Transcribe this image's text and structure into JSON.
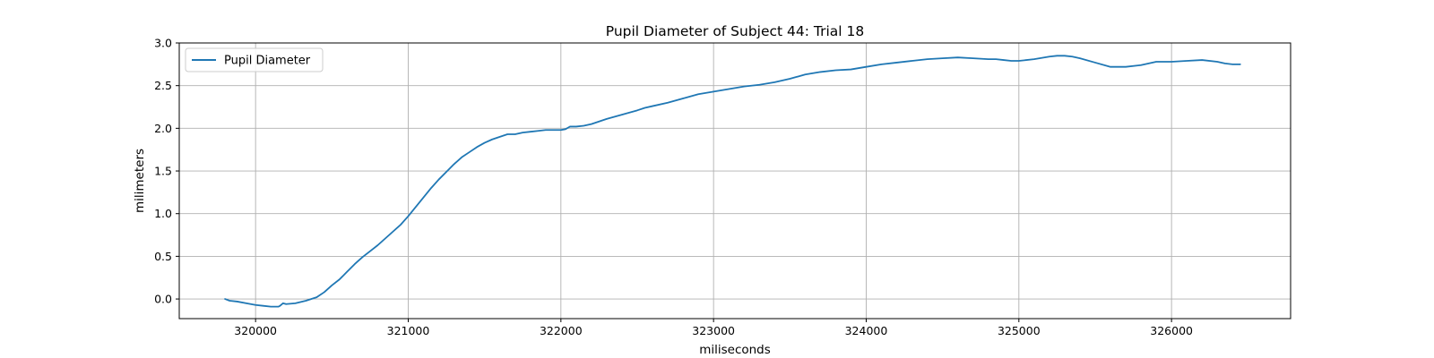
{
  "chart_data": {
    "type": "line",
    "title": "Pupil Diameter of Subject 44: Trial 18",
    "xlabel": "miliseconds",
    "ylabel": "milimeters",
    "xlim": [
      319500,
      326780
    ],
    "ylim": [
      -0.23,
      3.0
    ],
    "x_ticks": [
      320000,
      321000,
      322000,
      323000,
      324000,
      325000,
      326000
    ],
    "y_ticks": [
      0.0,
      0.5,
      1.0,
      1.5,
      2.0,
      2.5,
      3.0
    ],
    "grid": true,
    "legend_position": "top-left",
    "series": [
      {
        "name": "Pupil Diameter",
        "color": "#1f77b4",
        "x": [
          319800,
          319830,
          319880,
          319940,
          320000,
          320050,
          320100,
          320150,
          320160,
          320180,
          320200,
          320260,
          320330,
          320400,
          320450,
          320500,
          320550,
          320600,
          320650,
          320700,
          320750,
          320800,
          320850,
          320900,
          320950,
          321000,
          321050,
          321100,
          321150,
          321200,
          321250,
          321300,
          321350,
          321400,
          321450,
          321500,
          321550,
          321600,
          321650,
          321700,
          321750,
          321800,
          321850,
          321900,
          321950,
          322000,
          322030,
          322050,
          322060,
          322100,
          322150,
          322200,
          322250,
          322300,
          322400,
          322500,
          322550,
          322600,
          322700,
          322800,
          322900,
          323000,
          323100,
          323200,
          323300,
          323400,
          323500,
          323600,
          323700,
          323800,
          323900,
          324000,
          324100,
          324200,
          324300,
          324400,
          324500,
          324600,
          324700,
          324800,
          324850,
          324900,
          324950,
          325000,
          325100,
          325200,
          325250,
          325300,
          325350,
          325400,
          325500,
          325600,
          325700,
          325800,
          325900,
          326000,
          326100,
          326200,
          326300,
          326350,
          326400,
          326450
        ],
        "y": [
          0.0,
          -0.02,
          -0.03,
          -0.05,
          -0.07,
          -0.08,
          -0.09,
          -0.09,
          -0.08,
          -0.05,
          -0.06,
          -0.05,
          -0.02,
          0.02,
          0.08,
          0.16,
          0.23,
          0.32,
          0.41,
          0.49,
          0.56,
          0.63,
          0.71,
          0.79,
          0.87,
          0.97,
          1.08,
          1.19,
          1.3,
          1.4,
          1.49,
          1.58,
          1.66,
          1.72,
          1.78,
          1.83,
          1.87,
          1.9,
          1.93,
          1.93,
          1.95,
          1.96,
          1.97,
          1.98,
          1.98,
          1.98,
          1.99,
          2.01,
          2.02,
          2.02,
          2.03,
          2.05,
          2.08,
          2.11,
          2.16,
          2.21,
          2.24,
          2.26,
          2.3,
          2.35,
          2.4,
          2.43,
          2.46,
          2.49,
          2.51,
          2.54,
          2.58,
          2.63,
          2.66,
          2.68,
          2.69,
          2.72,
          2.75,
          2.77,
          2.79,
          2.81,
          2.82,
          2.83,
          2.82,
          2.81,
          2.81,
          2.8,
          2.79,
          2.79,
          2.81,
          2.84,
          2.85,
          2.85,
          2.84,
          2.82,
          2.77,
          2.72,
          2.72,
          2.74,
          2.78,
          2.78,
          2.79,
          2.8,
          2.78,
          2.76,
          2.75,
          2.75
        ]
      }
    ]
  }
}
